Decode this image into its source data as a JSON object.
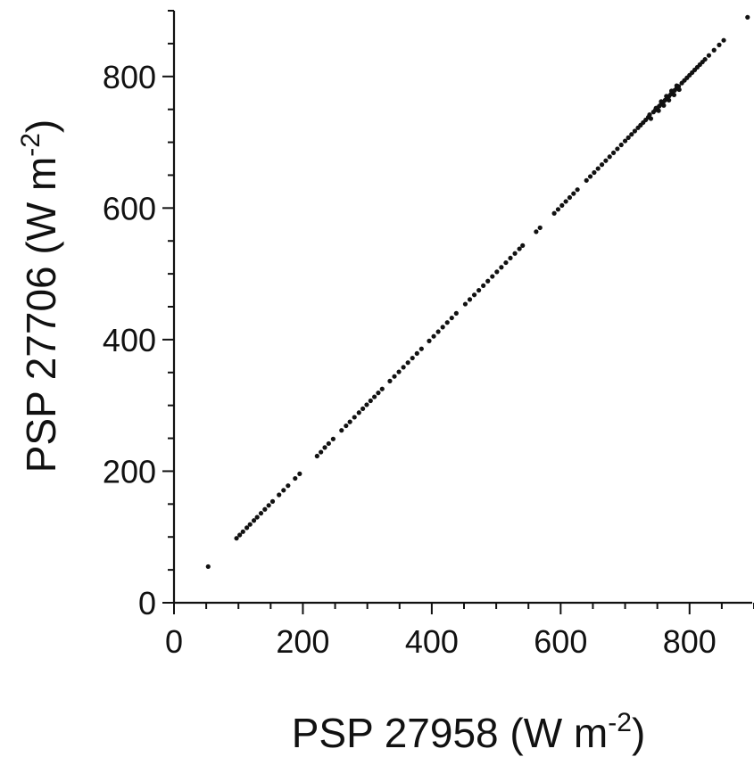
{
  "chart_data": {
    "type": "scatter",
    "title": "",
    "xlabel": {
      "main": "PSP 27958 (W m",
      "sup": "-2",
      "close": ")"
    },
    "ylabel": {
      "main": "PSP 27706 (W m",
      "sup": "-2",
      "close": ")"
    },
    "xlim": [
      0,
      900
    ],
    "ylim": [
      0,
      900
    ],
    "x_major_ticks": [
      0,
      200,
      400,
      600,
      800
    ],
    "y_major_ticks": [
      0,
      200,
      400,
      600,
      800
    ],
    "x_tick_labels": [
      "0",
      "200",
      "400",
      "600",
      "800"
    ],
    "y_tick_labels": [
      "0",
      "200",
      "400",
      "600",
      "800"
    ],
    "minor_tick_step": 50,
    "grid": false,
    "legend": "none",
    "series": [
      {
        "color": "#111111",
        "points": [
          [
            53,
            55
          ],
          [
            97,
            98
          ],
          [
            102,
            103
          ],
          [
            107,
            108
          ],
          [
            113,
            114
          ],
          [
            118,
            119
          ],
          [
            124,
            125
          ],
          [
            129,
            130
          ],
          [
            135,
            136
          ],
          [
            141,
            142
          ],
          [
            147,
            148
          ],
          [
            153,
            154
          ],
          [
            163,
            164
          ],
          [
            170,
            171
          ],
          [
            177,
            178
          ],
          [
            188,
            189
          ],
          [
            195,
            196
          ],
          [
            222,
            223
          ],
          [
            228,
            229
          ],
          [
            234,
            236
          ],
          [
            240,
            242
          ],
          [
            247,
            249
          ],
          [
            260,
            262
          ],
          [
            267,
            269
          ],
          [
            273,
            275
          ],
          [
            280,
            282
          ],
          [
            287,
            289
          ],
          [
            293,
            295
          ],
          [
            299,
            301
          ],
          [
            305,
            307
          ],
          [
            311,
            313
          ],
          [
            317,
            319
          ],
          [
            323,
            325
          ],
          [
            335,
            337
          ],
          [
            342,
            344
          ],
          [
            349,
            351
          ],
          [
            356,
            358
          ],
          [
            363,
            365
          ],
          [
            370,
            372
          ],
          [
            377,
            379
          ],
          [
            384,
            386
          ],
          [
            396,
            398
          ],
          [
            403,
            405
          ],
          [
            410,
            412
          ],
          [
            417,
            419
          ],
          [
            424,
            426
          ],
          [
            431,
            433
          ],
          [
            438,
            440
          ],
          [
            452,
            454
          ],
          [
            459,
            461
          ],
          [
            466,
            468
          ],
          [
            473,
            475
          ],
          [
            480,
            482
          ],
          [
            487,
            489
          ],
          [
            494,
            496
          ],
          [
            501,
            503
          ],
          [
            508,
            510
          ],
          [
            515,
            517
          ],
          [
            522,
            524
          ],
          [
            529,
            531
          ],
          [
            536,
            538
          ],
          [
            541,
            543
          ],
          [
            562,
            564
          ],
          [
            568,
            570
          ],
          [
            590,
            592
          ],
          [
            596,
            598
          ],
          [
            602,
            604
          ],
          [
            608,
            610
          ],
          [
            614,
            616
          ],
          [
            620,
            622
          ],
          [
            626,
            628
          ],
          [
            640,
            642
          ],
          [
            646,
            648
          ],
          [
            652,
            654
          ],
          [
            658,
            660
          ],
          [
            664,
            666
          ],
          [
            670,
            672
          ],
          [
            676,
            678
          ],
          [
            682,
            684
          ],
          [
            688,
            690
          ],
          [
            694,
            696
          ],
          [
            700,
            702
          ],
          [
            705,
            707
          ],
          [
            710,
            712
          ],
          [
            715,
            717
          ],
          [
            720,
            722
          ],
          [
            724,
            726
          ],
          [
            728,
            730
          ],
          [
            732,
            734
          ],
          [
            736,
            738
          ],
          [
            738,
            742
          ],
          [
            740,
            736
          ],
          [
            744,
            746
          ],
          [
            747,
            749
          ],
          [
            750,
            752
          ],
          [
            753,
            755
          ],
          [
            756,
            758
          ],
          [
            759,
            761
          ],
          [
            762,
            764
          ],
          [
            765,
            767
          ],
          [
            768,
            770
          ],
          [
            771,
            773
          ],
          [
            774,
            776
          ],
          [
            777,
            779
          ],
          [
            780,
            782
          ],
          [
            783,
            785
          ],
          [
            748,
            752
          ],
          [
            752,
            748
          ],
          [
            756,
            762
          ],
          [
            760,
            756
          ],
          [
            764,
            770
          ],
          [
            768,
            764
          ],
          [
            772,
            778
          ],
          [
            776,
            772
          ],
          [
            780,
            786
          ],
          [
            784,
            780
          ],
          [
            788,
            790
          ],
          [
            792,
            794
          ],
          [
            796,
            798
          ],
          [
            800,
            802
          ],
          [
            804,
            806
          ],
          [
            808,
            810
          ],
          [
            812,
            814
          ],
          [
            816,
            818
          ],
          [
            820,
            822
          ],
          [
            824,
            826
          ],
          [
            830,
            832
          ],
          [
            838,
            840
          ],
          [
            846,
            848
          ],
          [
            853,
            855
          ],
          [
            890,
            890
          ]
        ]
      }
    ]
  }
}
